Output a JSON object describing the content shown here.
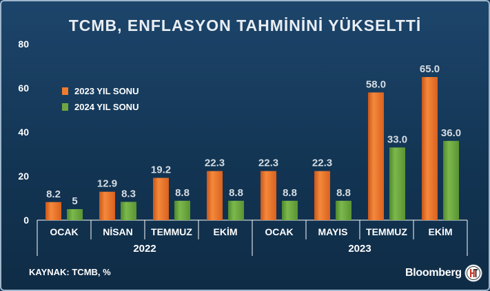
{
  "title": "TCMB, ENFLASYON TAHMİNİNİ YÜKSELTTİ",
  "source": "KAYNAK: TCMB, %",
  "brand": "Bloomberg",
  "colors": {
    "series_2023": "#f07b2e",
    "series_2024": "#6fa640",
    "background": "#173d60"
  },
  "chart_data": {
    "type": "bar",
    "categories": [
      "OCAK",
      "NİSAN",
      "TEMMUZ",
      "EKİM",
      "OCAK",
      "MAYIS",
      "TEMMUZ",
      "EKİM"
    ],
    "groups": [
      {
        "label": "2022",
        "categories": [
          0,
          1,
          2,
          3
        ]
      },
      {
        "label": "2023",
        "categories": [
          4,
          5,
          6,
          7
        ]
      }
    ],
    "series": [
      {
        "name": "2023 YIL SONU",
        "values": [
          8.2,
          12.9,
          19.2,
          22.3,
          22.3,
          22.3,
          58.0,
          65.0
        ],
        "labels": [
          "8.2",
          "12.9",
          "19.2",
          "22.3",
          "22.3",
          "22.3",
          "58.0",
          "65.0"
        ]
      },
      {
        "name": "2024 YIL SONU",
        "values": [
          5,
          8.3,
          8.8,
          8.8,
          8.8,
          8.8,
          33.0,
          36.0
        ],
        "labels": [
          "5",
          "8.3",
          "8.8",
          "8.8",
          "8.8",
          "8.8",
          "33.0",
          "36.0"
        ]
      }
    ],
    "yticks": [
      0,
      20,
      40,
      60,
      80
    ],
    "ylim": [
      0,
      80
    ],
    "legend_position": "top-left",
    "grid": false
  }
}
